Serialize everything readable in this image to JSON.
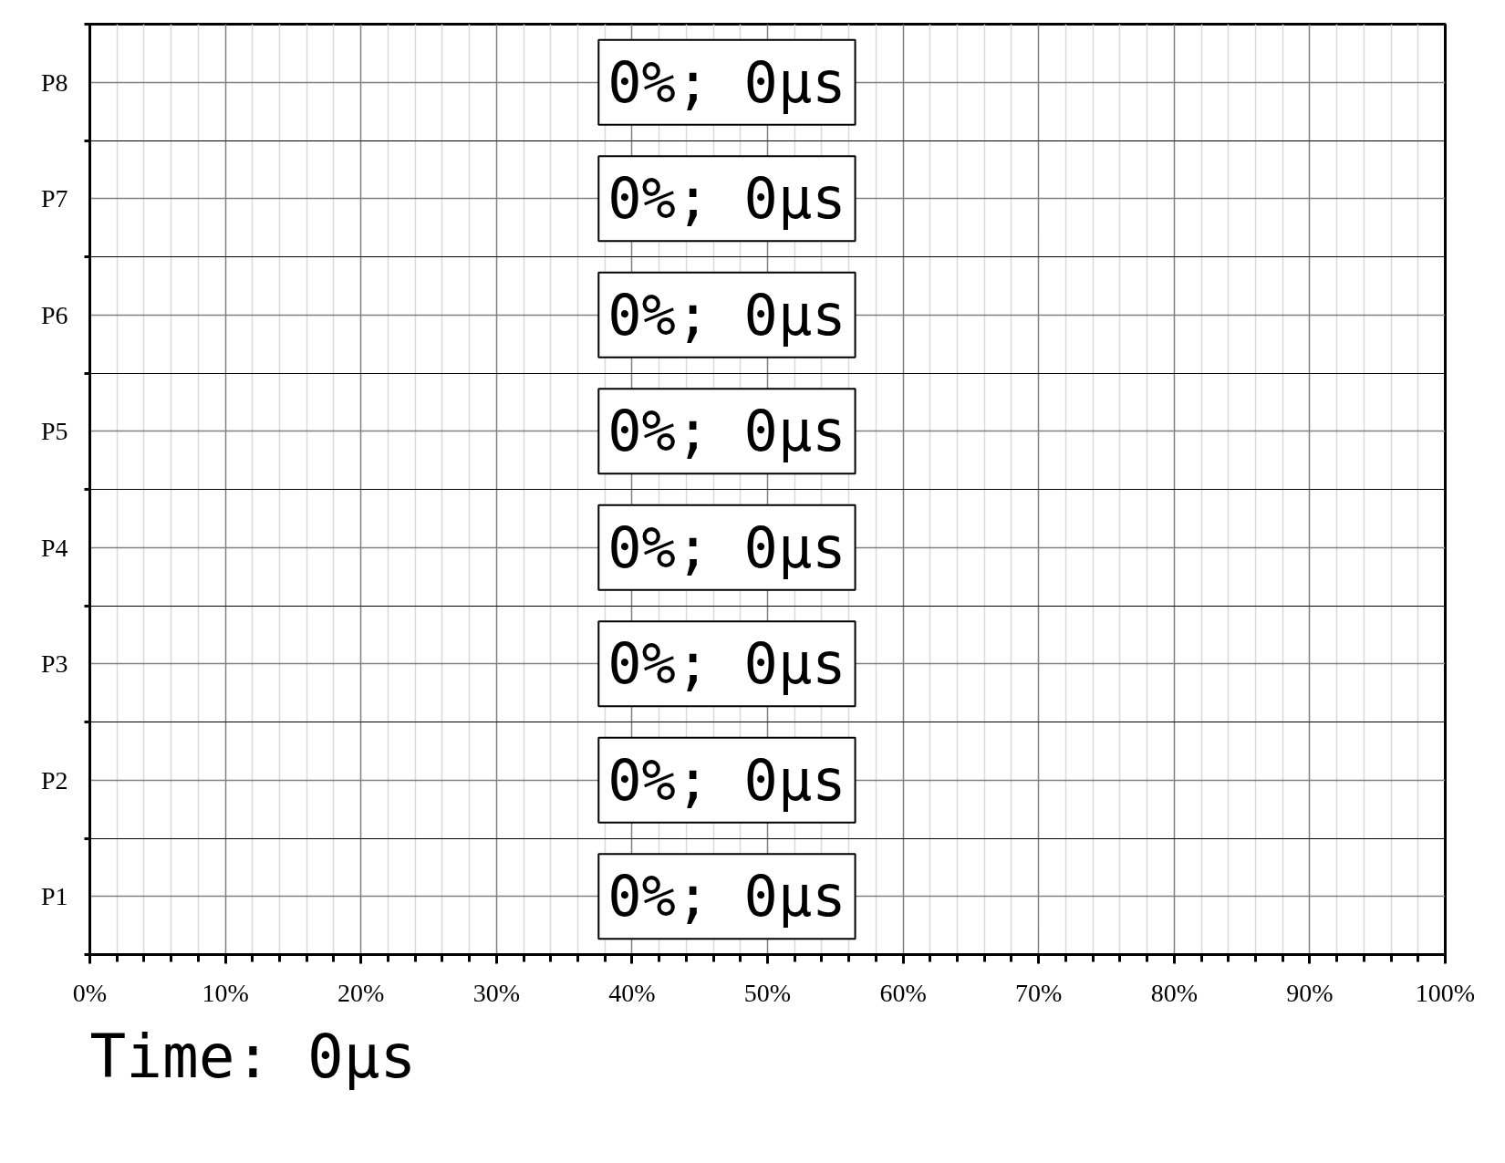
{
  "chart_data": {
    "type": "bar",
    "orientation": "horizontal",
    "categories": [
      "P8",
      "P7",
      "P6",
      "P5",
      "P4",
      "P3",
      "P2",
      "P1"
    ],
    "values": [
      0,
      0,
      0,
      0,
      0,
      0,
      0,
      0
    ],
    "value_labels": [
      "0%; 0μs",
      "0%; 0μs",
      "0%; 0μs",
      "0%; 0μs",
      "0%; 0μs",
      "0%; 0μs",
      "0%; 0μs",
      "0%; 0μs"
    ],
    "xlim": [
      0,
      100
    ],
    "xticks": [
      {
        "value": 0,
        "label": "0%"
      },
      {
        "value": 2,
        "label": null
      },
      {
        "value": 4,
        "label": null
      },
      {
        "value": 6,
        "label": null
      },
      {
        "value": 8,
        "label": null
      },
      {
        "value": 10,
        "label": "10%"
      },
      {
        "value": 12,
        "label": null
      },
      {
        "value": 14,
        "label": null
      },
      {
        "value": 16,
        "label": null
      },
      {
        "value": 18,
        "label": null
      },
      {
        "value": 20,
        "label": "20%"
      },
      {
        "value": 22,
        "label": null
      },
      {
        "value": 24,
        "label": null
      },
      {
        "value": 26,
        "label": null
      },
      {
        "value": 28,
        "label": null
      },
      {
        "value": 30,
        "label": "30%"
      },
      {
        "value": 32,
        "label": null
      },
      {
        "value": 34,
        "label": null
      },
      {
        "value": 36,
        "label": null
      },
      {
        "value": 38,
        "label": null
      },
      {
        "value": 40,
        "label": "40%"
      },
      {
        "value": 42,
        "label": null
      },
      {
        "value": 44,
        "label": null
      },
      {
        "value": 46,
        "label": null
      },
      {
        "value": 48,
        "label": null
      },
      {
        "value": 50,
        "label": "50%"
      },
      {
        "value": 52,
        "label": null
      },
      {
        "value": 54,
        "label": null
      },
      {
        "value": 56,
        "label": null
      },
      {
        "value": 58,
        "label": null
      },
      {
        "value": 60,
        "label": "60%"
      },
      {
        "value": 62,
        "label": null
      },
      {
        "value": 64,
        "label": null
      },
      {
        "value": 66,
        "label": null
      },
      {
        "value": 68,
        "label": null
      },
      {
        "value": 70,
        "label": "70%"
      },
      {
        "value": 72,
        "label": null
      },
      {
        "value": 74,
        "label": null
      },
      {
        "value": 76,
        "label": null
      },
      {
        "value": 78,
        "label": null
      },
      {
        "value": 80,
        "label": "80%"
      },
      {
        "value": 82,
        "label": null
      },
      {
        "value": 84,
        "label": null
      },
      {
        "value": 86,
        "label": null
      },
      {
        "value": 88,
        "label": null
      },
      {
        "value": 90,
        "label": "90%"
      },
      {
        "value": 92,
        "label": null
      },
      {
        "value": 94,
        "label": null
      },
      {
        "value": 96,
        "label": null
      },
      {
        "value": 98,
        "label": null
      },
      {
        "value": 100,
        "label": "100%"
      }
    ],
    "grid": true,
    "annotations": [
      "Time: 0μs"
    ]
  }
}
